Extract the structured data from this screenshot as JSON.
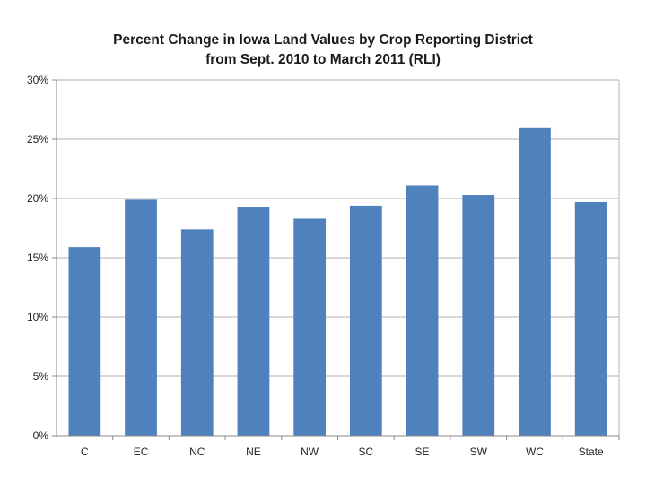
{
  "chart_data": {
    "type": "bar",
    "title": [
      "Percent Change in Iowa Land Values by Crop Reporting District",
      "from Sept. 2010 to March 2011 (RLI)"
    ],
    "categories": [
      "C",
      "EC",
      "NC",
      "NE",
      "NW",
      "SC",
      "SE",
      "SW",
      "WC",
      "State"
    ],
    "values": [
      15.9,
      19.9,
      17.4,
      19.3,
      18.3,
      19.4,
      21.1,
      20.3,
      26.0,
      19.7
    ],
    "ylim": [
      0,
      30
    ],
    "yticks": [
      "0%",
      "5%",
      "10%",
      "15%",
      "20%",
      "25%",
      "30%"
    ],
    "grid": true,
    "legend": "none",
    "colors": {
      "bar": "#4f81bd",
      "grid": "#b0b0b0",
      "axis": "#888888"
    }
  }
}
